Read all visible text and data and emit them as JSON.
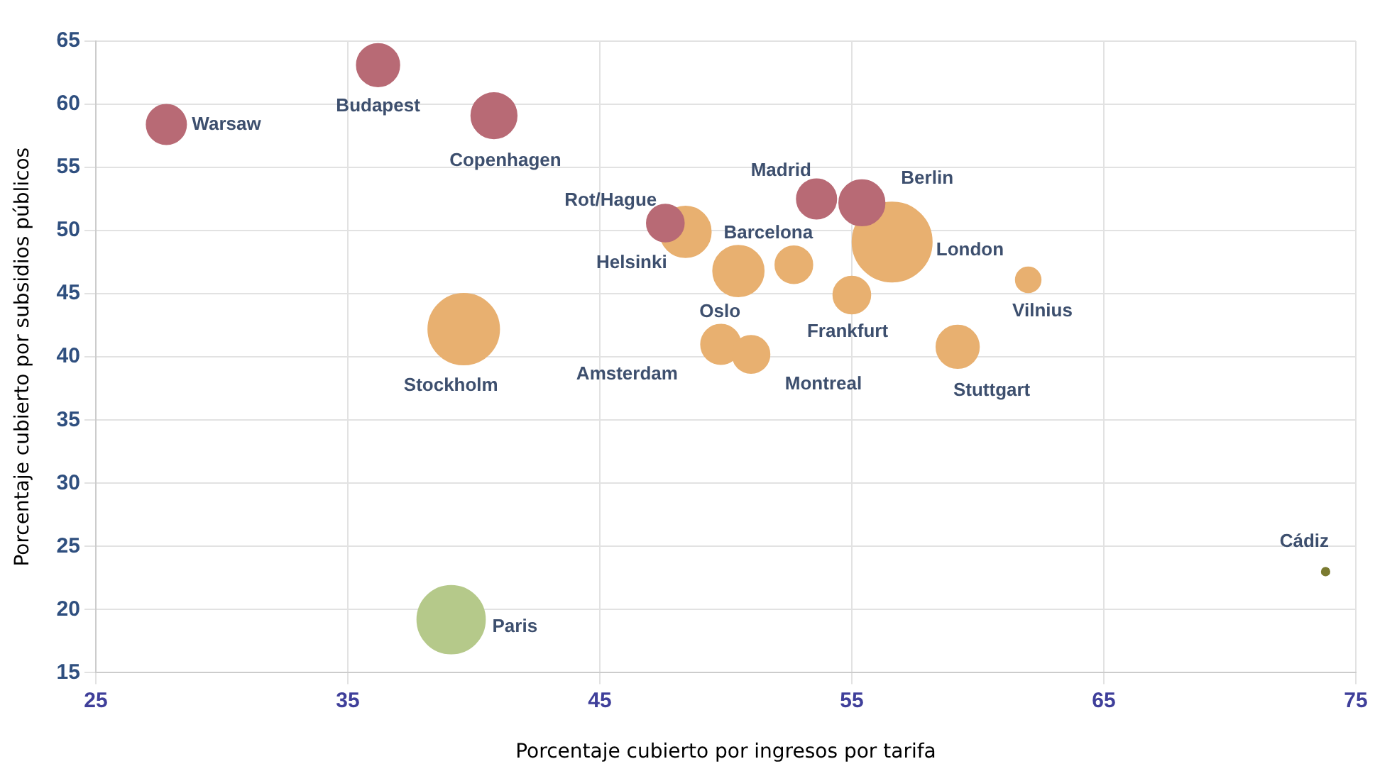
{
  "chart_data": {
    "type": "bubble",
    "xlabel": "Porcentaje cubierto por ingresos por tarifa",
    "ylabel": "Porcentaje cubierto por subsidios públicos",
    "xlim": [
      25,
      75
    ],
    "xticks": [
      25,
      35,
      45,
      55,
      65,
      75
    ],
    "ylim": [
      15,
      65
    ],
    "yticks": [
      15,
      20,
      25,
      30,
      35,
      40,
      45,
      50,
      55,
      60,
      65
    ],
    "grid": true,
    "legend": false,
    "series": [
      {
        "color": "#b86a75",
        "x": [
          27.8,
          36.2,
          40.8,
          47.6,
          53.6,
          55.4
        ],
        "values": [
          58.4,
          63.1,
          59.1,
          50.6,
          52.5,
          52.2
        ],
        "sizes": [
          0.25,
          0.29,
          0.33,
          0.22,
          0.25,
          0.33
        ]
      },
      {
        "color": "#e8b070",
        "x": [
          48.4,
          56.6,
          52.7,
          50.5,
          55.0,
          62.0,
          39.6,
          49.8,
          51.0,
          59.2
        ],
        "values": [
          49.9,
          49.1,
          47.3,
          46.8,
          44.9,
          46.1,
          42.2,
          41.0,
          40.2,
          40.8
        ],
        "sizes": [
          0.41,
          1,
          0.22,
          0.41,
          0.22,
          0.1,
          0.8,
          0.25,
          0.22,
          0.29
        ]
      },
      {
        "color": "#7a7a30",
        "x": [
          73.8
        ],
        "values": [
          23.0
        ],
        "sizes": [
          0.01
        ]
      },
      {
        "color": "#b5c98a",
        "x": [
          39.1
        ],
        "values": [
          19.2
        ],
        "sizes": [
          0.73
        ]
      }
    ],
    "annotations": [
      {
        "text": "Warsaw",
        "x": 27.8,
        "y": 58.4
      },
      {
        "text": "Budapest",
        "x": 36.2,
        "y": 63.1
      },
      {
        "text": "Copenhagen",
        "x": 40.8,
        "y": 59.1
      },
      {
        "text": "Rot/Hague",
        "x": 47.6,
        "y": 50.6
      },
      {
        "text": "Helsinki",
        "x": 48.4,
        "y": 49.9
      },
      {
        "text": "Madrid",
        "x": 53.6,
        "y": 52.5
      },
      {
        "text": "Berlin",
        "x": 55.4,
        "y": 52.2
      },
      {
        "text": "London",
        "x": 56.6,
        "y": 49.1
      },
      {
        "text": "Barcelona",
        "x": 52.7,
        "y": 47.3
      },
      {
        "text": "Oslo",
        "x": 50.5,
        "y": 46.8
      },
      {
        "text": "Frankfurt",
        "x": 55.0,
        "y": 44.9
      },
      {
        "text": "Vilnius",
        "x": 62.0,
        "y": 46.1
      },
      {
        "text": "Stockholm",
        "x": 39.6,
        "y": 42.2
      },
      {
        "text": "Amsterdam",
        "x": 49.8,
        "y": 41.0
      },
      {
        "text": "Montreal",
        "x": 51.0,
        "y": 40.2
      },
      {
        "text": "Stuttgart",
        "x": 59.2,
        "y": 40.8
      },
      {
        "text": "Cádiz",
        "x": 73.8,
        "y": 23.0
      },
      {
        "text": "Paris",
        "x": 39.1,
        "y": 19.2
      }
    ]
  }
}
